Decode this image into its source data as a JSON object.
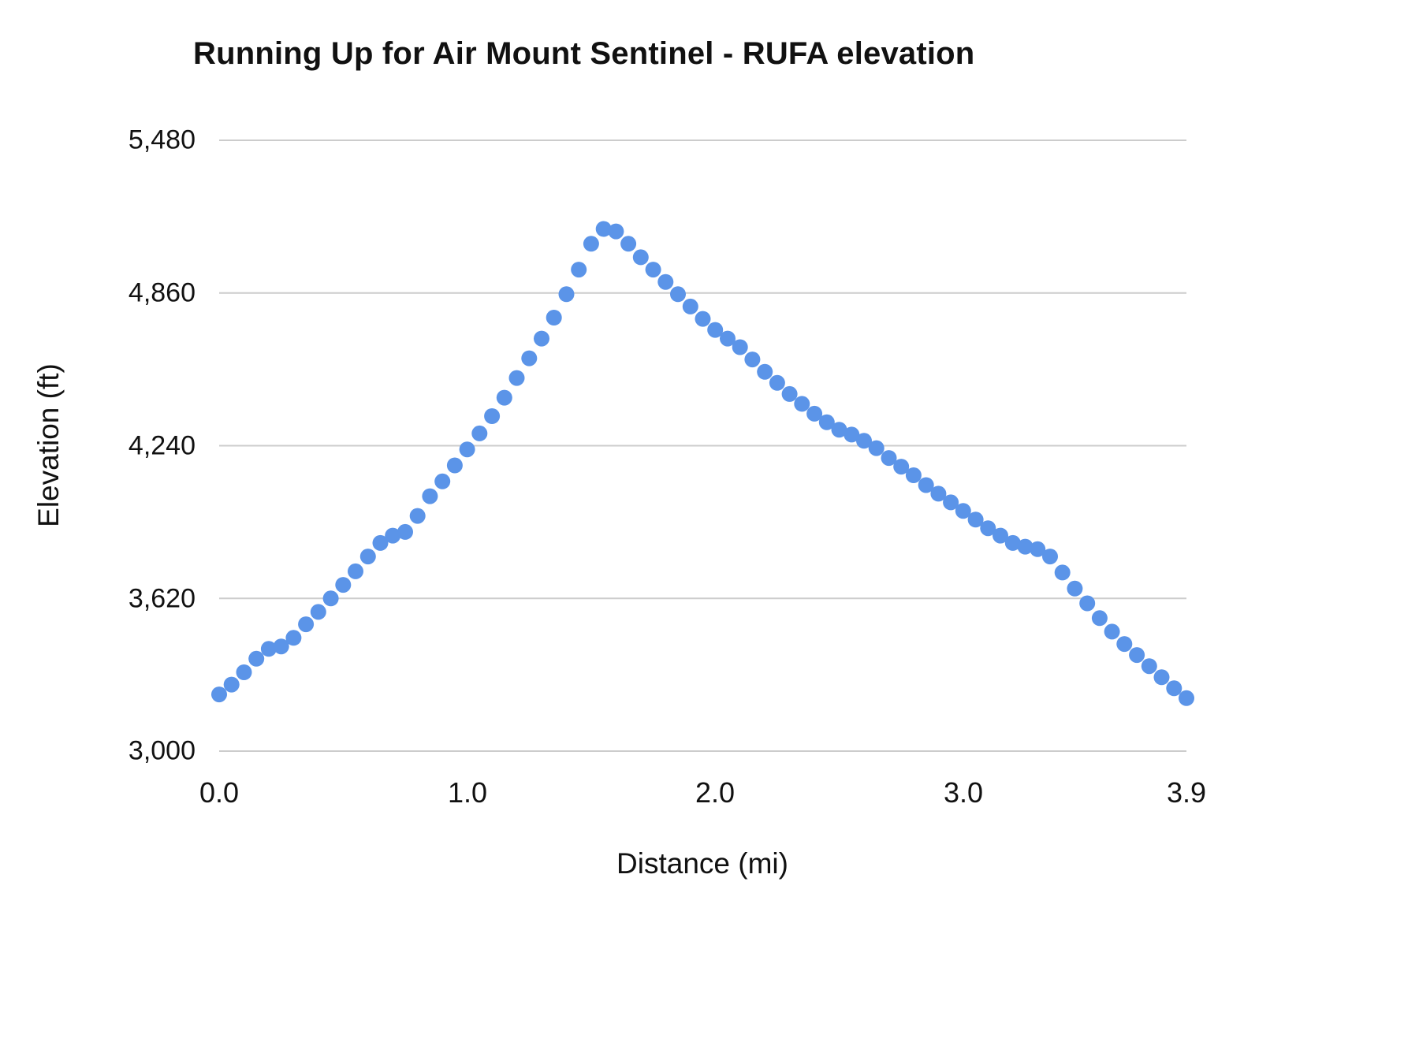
{
  "chart_data": {
    "type": "scatter",
    "title": "Running Up for Air Mount Sentinel - RUFA elevation",
    "xlabel": "Distance (mi)",
    "ylabel": "Elevation (ft)",
    "xlim": [
      0,
      3.9
    ],
    "ylim": [
      3000,
      5480
    ],
    "x_ticks": [
      0.0,
      1.0,
      2.0,
      3.0,
      3.9
    ],
    "x_tick_labels": [
      "0.0",
      "1.0",
      "2.0",
      "3.0",
      "3.9"
    ],
    "y_ticks": [
      3000,
      3620,
      4240,
      4860,
      5480
    ],
    "y_tick_labels": [
      "3,000",
      "3,620",
      "4,240",
      "4,860",
      "5,480"
    ],
    "grid": "horizontal",
    "gridline_color": "#cccccc",
    "legend": "none",
    "series": [
      {
        "name": "elevation",
        "color": "#5b94e8",
        "marker_radius_px": 10,
        "x": [
          0.0,
          0.05,
          0.1,
          0.15,
          0.2,
          0.25,
          0.3,
          0.35,
          0.4,
          0.45,
          0.5,
          0.55,
          0.6,
          0.65,
          0.7,
          0.75,
          0.8,
          0.85,
          0.9,
          0.95,
          1.0,
          1.05,
          1.1,
          1.15,
          1.2,
          1.25,
          1.3,
          1.35,
          1.4,
          1.45,
          1.5,
          1.55,
          1.6,
          1.65,
          1.7,
          1.75,
          1.8,
          1.85,
          1.9,
          1.95,
          2.0,
          2.05,
          2.1,
          2.15,
          2.2,
          2.25,
          2.3,
          2.35,
          2.4,
          2.45,
          2.5,
          2.55,
          2.6,
          2.65,
          2.7,
          2.75,
          2.8,
          2.85,
          2.9,
          2.95,
          3.0,
          3.05,
          3.1,
          3.15,
          3.2,
          3.25,
          3.3,
          3.35,
          3.4,
          3.45,
          3.5,
          3.55,
          3.6,
          3.65,
          3.7,
          3.75,
          3.8,
          3.85,
          3.9
        ],
        "y": [
          3230,
          3270,
          3320,
          3375,
          3415,
          3425,
          3460,
          3515,
          3565,
          3620,
          3675,
          3730,
          3790,
          3845,
          3875,
          3890,
          3955,
          4035,
          4095,
          4160,
          4225,
          4290,
          4360,
          4435,
          4515,
          4595,
          4675,
          4760,
          4855,
          4955,
          5060,
          5120,
          5110,
          5060,
          5005,
          4955,
          4905,
          4855,
          4805,
          4755,
          4710,
          4675,
          4640,
          4590,
          4540,
          4495,
          4450,
          4410,
          4370,
          4335,
          4305,
          4285,
          4260,
          4230,
          4190,
          4155,
          4120,
          4080,
          4045,
          4010,
          3975,
          3940,
          3905,
          3875,
          3845,
          3830,
          3820,
          3790,
          3725,
          3660,
          3600,
          3540,
          3485,
          3435,
          3390,
          3345,
          3300,
          3255,
          3215
        ]
      }
    ]
  }
}
